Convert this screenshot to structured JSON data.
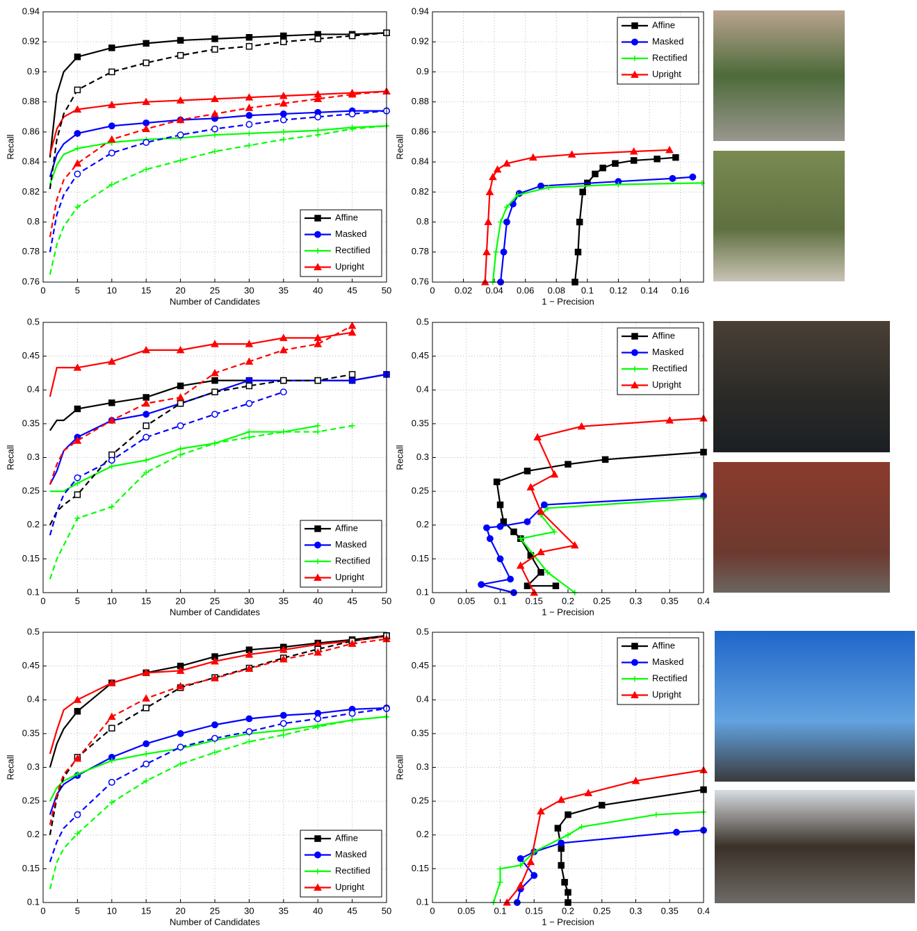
{
  "chart_data": [
    {
      "type": "line",
      "xlabel": "Number of Candidates",
      "ylabel": "Recall",
      "xlim": [
        0,
        50
      ],
      "ylim": [
        0.76,
        0.94
      ],
      "xticks": [
        0,
        5,
        10,
        15,
        20,
        25,
        30,
        35,
        40,
        45,
        50
      ],
      "yticks": [
        0.76,
        0.78,
        0.8,
        0.82,
        0.84,
        0.86,
        0.88,
        0.9,
        0.92,
        0.94
      ],
      "grid": true,
      "legend": "lower right",
      "x": [
        1,
        2,
        3,
        5,
        10,
        15,
        20,
        25,
        30,
        35,
        40,
        45,
        50
      ],
      "series": [
        {
          "name": "Affine",
          "color": "#000000",
          "marker": "square",
          "values": [
            0.843,
            0.885,
            0.9,
            0.91,
            0.916,
            0.919,
            0.921,
            0.922,
            0.923,
            0.924,
            0.925,
            0.925,
            0.926
          ]
        },
        {
          "name": "Masked",
          "color": "#0000ff",
          "marker": "circle",
          "values": [
            0.83,
            0.845,
            0.852,
            0.859,
            0.864,
            0.866,
            0.868,
            0.869,
            0.871,
            0.872,
            0.873,
            0.874,
            0.874
          ]
        },
        {
          "name": "Rectified",
          "color": "#00ff00",
          "marker": "plus",
          "values": [
            0.825,
            0.838,
            0.845,
            0.849,
            0.853,
            0.855,
            0.856,
            0.858,
            0.859,
            0.86,
            0.861,
            0.863,
            0.864
          ]
        },
        {
          "name": "Upright",
          "color": "#ff0000",
          "marker": "triangle",
          "values": [
            0.845,
            0.862,
            0.87,
            0.875,
            0.878,
            0.88,
            0.881,
            0.882,
            0.883,
            0.884,
            0.885,
            0.886,
            0.887
          ]
        },
        {
          "color": "#000000",
          "marker": "square",
          "dash": true,
          "values": [
            0.822,
            0.855,
            0.872,
            0.888,
            0.9,
            0.906,
            0.911,
            0.915,
            0.917,
            0.92,
            0.922,
            0.924,
            0.926
          ]
        },
        {
          "color": "#0000ff",
          "marker": "circle",
          "dash": true,
          "values": [
            0.78,
            0.805,
            0.818,
            0.832,
            0.846,
            0.853,
            0.858,
            0.862,
            0.865,
            0.868,
            0.87,
            0.872,
            0.874
          ]
        },
        {
          "color": "#00ff00",
          "marker": "plus",
          "dash": true,
          "values": [
            0.765,
            0.785,
            0.797,
            0.81,
            0.825,
            0.835,
            0.841,
            0.847,
            0.851,
            0.855,
            0.858,
            0.862,
            0.864
          ]
        },
        {
          "color": "#ff0000",
          "marker": "triangle",
          "dash": true,
          "values": [
            0.79,
            0.815,
            0.828,
            0.839,
            0.855,
            0.862,
            0.868,
            0.872,
            0.876,
            0.879,
            0.882,
            0.885,
            0.887
          ]
        }
      ]
    },
    {
      "type": "line",
      "xlabel": "1 − Precision",
      "ylabel": "Recall",
      "xlim": [
        0,
        0.175
      ],
      "ylim": [
        0.76,
        0.94
      ],
      "xticks": [
        0,
        0.02,
        0.04,
        0.06,
        0.08,
        0.1,
        0.12,
        0.14,
        0.16
      ],
      "yticks": [
        0.76,
        0.78,
        0.8,
        0.82,
        0.84,
        0.86,
        0.88,
        0.9,
        0.92,
        0.94
      ],
      "grid": true,
      "legend": "upper right",
      "series": [
        {
          "name": "Affine",
          "color": "#000000",
          "marker": "square",
          "x": [
            0.092,
            0.094,
            0.095,
            0.097,
            0.1,
            0.105,
            0.11,
            0.118,
            0.13,
            0.145,
            0.157
          ],
          "values": [
            0.76,
            0.78,
            0.8,
            0.82,
            0.826,
            0.832,
            0.836,
            0.839,
            0.841,
            0.842,
            0.843
          ]
        },
        {
          "name": "Masked",
          "color": "#0000ff",
          "marker": "circle",
          "x": [
            0.044,
            0.046,
            0.048,
            0.052,
            0.056,
            0.07,
            0.12,
            0.155,
            0.168
          ],
          "values": [
            0.76,
            0.78,
            0.8,
            0.812,
            0.819,
            0.824,
            0.827,
            0.829,
            0.83
          ]
        },
        {
          "name": "Rectified",
          "color": "#00ff00",
          "marker": "plus",
          "x": [
            0.039,
            0.041,
            0.044,
            0.048,
            0.055,
            0.075,
            0.12,
            0.174
          ],
          "values": [
            0.76,
            0.78,
            0.8,
            0.81,
            0.818,
            0.823,
            0.825,
            0.826
          ]
        },
        {
          "name": "Upright",
          "color": "#ff0000",
          "marker": "triangle",
          "x": [
            0.034,
            0.035,
            0.036,
            0.037,
            0.039,
            0.042,
            0.048,
            0.065,
            0.09,
            0.13,
            0.153
          ],
          "values": [
            0.76,
            0.78,
            0.8,
            0.82,
            0.83,
            0.835,
            0.839,
            0.843,
            0.845,
            0.847,
            0.848
          ]
        }
      ]
    },
    {
      "type": "line",
      "xlabel": "Number of Candidates",
      "ylabel": "Recall",
      "xlim": [
        0,
        50
      ],
      "ylim": [
        0.1,
        0.5
      ],
      "xticks": [
        0,
        5,
        10,
        15,
        20,
        25,
        30,
        35,
        40,
        45,
        50
      ],
      "yticks": [
        0.1,
        0.15,
        0.2,
        0.25,
        0.3,
        0.35,
        0.4,
        0.45,
        0.5
      ],
      "grid": true,
      "legend": "lower right",
      "x": [
        1,
        2,
        3,
        5,
        10,
        15,
        20,
        25,
        30,
        35,
        40,
        45,
        50
      ],
      "series": [
        {
          "name": "Affine",
          "color": "#000000",
          "marker": "square",
          "values": [
            0.34,
            0.355,
            0.355,
            0.372,
            0.381,
            0.389,
            0.406,
            0.414,
            0.414,
            0.414,
            0.414,
            0.414,
            0.423
          ]
        },
        {
          "name": "Masked",
          "color": "#0000ff",
          "marker": "circle",
          "values": [
            0.26,
            0.28,
            0.31,
            0.33,
            0.355,
            0.364,
            0.38,
            0.397,
            0.414,
            0.414,
            0.414,
            0.414,
            0.423
          ]
        },
        {
          "name": "Rectified",
          "color": "#00ff00",
          "marker": "plus",
          "values": [
            0.25,
            0.25,
            0.25,
            0.262,
            0.287,
            0.296,
            0.313,
            0.321,
            0.338,
            0.338,
            0.347,
            null,
            null
          ]
        },
        {
          "name": "Upright",
          "color": "#ff0000",
          "marker": "triangle",
          "values": [
            0.39,
            0.433,
            0.433,
            0.433,
            0.442,
            0.459,
            0.459,
            0.468,
            0.468,
            0.477,
            0.477,
            0.485,
            null
          ]
        },
        {
          "color": "#000000",
          "marker": "square",
          "dash": true,
          "values": [
            0.2,
            0.22,
            0.23,
            0.245,
            0.304,
            0.347,
            0.38,
            0.397,
            0.406,
            0.414,
            0.414,
            0.423,
            null
          ]
        },
        {
          "color": "#0000ff",
          "marker": "circle",
          "dash": true,
          "values": [
            0.185,
            0.22,
            0.245,
            0.27,
            0.296,
            0.33,
            0.347,
            0.364,
            0.38,
            0.397,
            null,
            null,
            null
          ]
        },
        {
          "color": "#00ff00",
          "marker": "plus",
          "dash": true,
          "values": [
            0.12,
            0.15,
            0.17,
            0.21,
            0.227,
            0.278,
            0.304,
            0.321,
            0.33,
            0.338,
            0.338,
            0.347,
            null
          ]
        },
        {
          "color": "#ff0000",
          "marker": "triangle",
          "dash": true,
          "values": [
            0.26,
            0.29,
            0.31,
            0.325,
            0.355,
            0.38,
            0.389,
            0.425,
            0.442,
            0.459,
            0.468,
            0.495,
            null
          ]
        }
      ]
    },
    {
      "type": "line",
      "xlabel": "1 − Precision",
      "ylabel": "Recall",
      "xlim": [
        0,
        0.4
      ],
      "ylim": [
        0.1,
        0.5
      ],
      "xticks": [
        0,
        0.05,
        0.1,
        0.15,
        0.2,
        0.25,
        0.3,
        0.35,
        0.4
      ],
      "yticks": [
        0.1,
        0.15,
        0.2,
        0.25,
        0.3,
        0.35,
        0.4,
        0.45,
        0.5
      ],
      "grid": true,
      "legend": "upper right",
      "series": [
        {
          "name": "Affine",
          "color": "#000000",
          "marker": "square",
          "x": [
            0.182,
            0.14,
            0.16,
            0.145,
            0.13,
            0.12,
            0.105,
            0.1,
            0.095,
            0.14,
            0.2,
            0.255,
            0.4
          ],
          "values": [
            0.11,
            0.11,
            0.13,
            0.155,
            0.18,
            0.19,
            0.205,
            0.23,
            0.264,
            0.28,
            0.29,
            0.297,
            0.308
          ]
        },
        {
          "name": "Masked",
          "color": "#0000ff",
          "marker": "circle",
          "x": [
            0.12,
            0.072,
            0.115,
            0.1,
            0.085,
            0.08,
            0.1,
            0.14,
            0.165,
            0.4
          ],
          "values": [
            0.1,
            0.112,
            0.12,
            0.15,
            0.18,
            0.196,
            0.198,
            0.205,
            0.23,
            0.243
          ]
        },
        {
          "name": "Rectified",
          "color": "#00ff00",
          "marker": "plus",
          "x": [
            0.21,
            0.17,
            0.13,
            0.18,
            0.16,
            0.17,
            0.4
          ],
          "values": [
            0.1,
            0.13,
            0.18,
            0.19,
            0.215,
            0.225,
            0.24
          ]
        },
        {
          "name": "Upright",
          "color": "#ff0000",
          "marker": "triangle",
          "x": [
            0.15,
            0.13,
            0.16,
            0.21,
            0.16,
            0.145,
            0.18,
            0.155,
            0.22,
            0.35,
            0.4
          ],
          "values": [
            0.1,
            0.14,
            0.16,
            0.17,
            0.22,
            0.256,
            0.275,
            0.33,
            0.346,
            0.355,
            0.358
          ]
        }
      ]
    },
    {
      "type": "line",
      "xlabel": "Number of Candidates",
      "ylabel": "Recall",
      "xlim": [
        0,
        50
      ],
      "ylim": [
        0.1,
        0.5
      ],
      "xticks": [
        0,
        5,
        10,
        15,
        20,
        25,
        30,
        35,
        40,
        45,
        50
      ],
      "yticks": [
        0.1,
        0.15,
        0.2,
        0.25,
        0.3,
        0.35,
        0.4,
        0.45,
        0.5
      ],
      "grid": true,
      "legend": "lower right",
      "x": [
        1,
        2,
        3,
        5,
        10,
        15,
        20,
        25,
        30,
        35,
        40,
        45,
        50
      ],
      "series": [
        {
          "name": "Affine",
          "color": "#000000",
          "marker": "square",
          "values": [
            0.3,
            0.335,
            0.357,
            0.383,
            0.425,
            0.44,
            0.45,
            0.464,
            0.474,
            0.478,
            0.484,
            0.489,
            0.495
          ]
        },
        {
          "name": "Masked",
          "color": "#0000ff",
          "marker": "circle",
          "values": [
            0.23,
            0.26,
            0.275,
            0.288,
            0.315,
            0.335,
            0.35,
            0.363,
            0.372,
            0.377,
            0.38,
            0.386,
            0.388
          ]
        },
        {
          "name": "Rectified",
          "color": "#00ff00",
          "marker": "plus",
          "values": [
            0.25,
            0.27,
            0.28,
            0.29,
            0.31,
            0.32,
            0.328,
            0.34,
            0.35,
            0.355,
            0.362,
            0.37,
            0.375
          ]
        },
        {
          "name": "Upright",
          "color": "#ff0000",
          "marker": "triangle",
          "values": [
            0.32,
            0.355,
            0.385,
            0.4,
            0.425,
            0.44,
            0.443,
            0.457,
            0.467,
            0.474,
            0.482,
            0.487,
            0.494
          ]
        },
        {
          "color": "#000000",
          "marker": "square",
          "dash": true,
          "values": [
            0.2,
            0.255,
            0.285,
            0.315,
            0.358,
            0.388,
            0.418,
            0.433,
            0.447,
            0.462,
            0.475,
            0.487,
            0.495
          ]
        },
        {
          "color": "#0000ff",
          "marker": "circle",
          "dash": true,
          "values": [
            0.16,
            0.19,
            0.21,
            0.23,
            0.278,
            0.305,
            0.33,
            0.343,
            0.353,
            0.365,
            0.372,
            0.38,
            0.387
          ]
        },
        {
          "color": "#00ff00",
          "marker": "plus",
          "dash": true,
          "values": [
            0.12,
            0.16,
            0.18,
            0.202,
            0.248,
            0.28,
            0.305,
            0.322,
            0.338,
            0.348,
            0.36,
            0.37,
            0.375
          ]
        },
        {
          "color": "#ff0000",
          "marker": "triangle",
          "dash": true,
          "values": [
            0.215,
            0.26,
            0.29,
            0.313,
            0.375,
            0.402,
            0.42,
            0.432,
            0.446,
            0.46,
            0.47,
            0.483,
            0.49
          ]
        }
      ]
    },
    {
      "type": "line",
      "xlabel": "1 − Precision",
      "ylabel": "Recall",
      "xlim": [
        0,
        0.4
      ],
      "ylim": [
        0.1,
        0.5
      ],
      "xticks": [
        0,
        0.05,
        0.1,
        0.15,
        0.2,
        0.25,
        0.3,
        0.35,
        0.4
      ],
      "yticks": [
        0.1,
        0.15,
        0.2,
        0.25,
        0.3,
        0.35,
        0.4,
        0.45,
        0.5
      ],
      "grid": true,
      "legend": "upper right",
      "series": [
        {
          "name": "Affine",
          "color": "#000000",
          "marker": "square",
          "x": [
            0.2,
            0.2,
            0.195,
            0.19,
            0.19,
            0.185,
            0.2,
            0.25,
            0.4
          ],
          "values": [
            0.1,
            0.115,
            0.13,
            0.155,
            0.18,
            0.21,
            0.23,
            0.244,
            0.267
          ]
        },
        {
          "name": "Masked",
          "color": "#0000ff",
          "marker": "circle",
          "x": [
            0.125,
            0.13,
            0.15,
            0.13,
            0.15,
            0.19,
            0.36,
            0.4
          ],
          "values": [
            0.1,
            0.12,
            0.14,
            0.165,
            0.175,
            0.188,
            0.204,
            0.207
          ]
        },
        {
          "name": "Rectified",
          "color": "#00ff00",
          "marker": "plus",
          "x": [
            0.09,
            0.1,
            0.1,
            0.13,
            0.15,
            0.2,
            0.22,
            0.33,
            0.4
          ],
          "values": [
            0.1,
            0.13,
            0.15,
            0.155,
            0.175,
            0.2,
            0.212,
            0.23,
            0.234
          ]
        },
        {
          "name": "Upright",
          "color": "#ff0000",
          "marker": "triangle",
          "x": [
            0.11,
            0.13,
            0.145,
            0.16,
            0.19,
            0.23,
            0.3,
            0.4
          ],
          "values": [
            0.1,
            0.125,
            0.16,
            0.235,
            0.252,
            0.262,
            0.28,
            0.296
          ]
        }
      ]
    }
  ]
}
